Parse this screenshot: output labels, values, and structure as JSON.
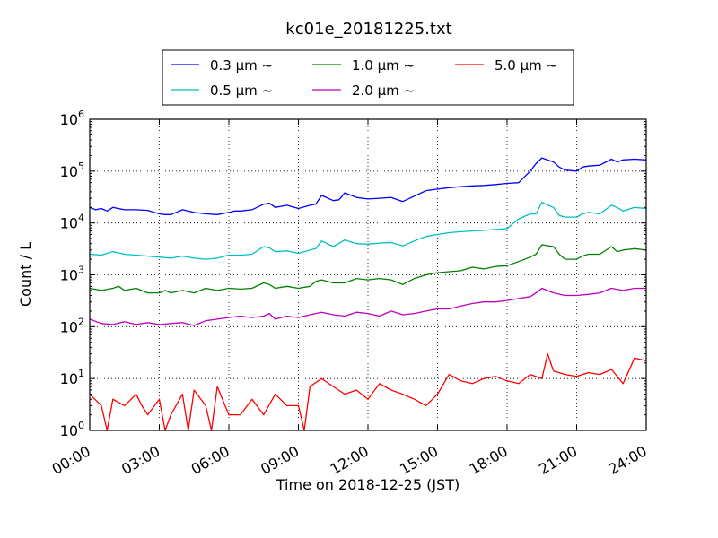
{
  "chart_data": {
    "type": "line",
    "title": "kc01e_20181225.txt",
    "xlabel": "Time on 2018-12-25 (JST)",
    "ylabel": "Count / L",
    "xlim": [
      0,
      24
    ],
    "ylim": [
      1,
      1000000
    ],
    "yscale": "log",
    "grid": true,
    "legend_placement": "top-center",
    "x_ticks": [
      {
        "value": 0,
        "label": "00:00"
      },
      {
        "value": 3,
        "label": "03:00"
      },
      {
        "value": 6,
        "label": "06:00"
      },
      {
        "value": 9,
        "label": "09:00"
      },
      {
        "value": 12,
        "label": "12:00"
      },
      {
        "value": 15,
        "label": "15:00"
      },
      {
        "value": 18,
        "label": "18:00"
      },
      {
        "value": 21,
        "label": "21:00"
      },
      {
        "value": 24,
        "label": "24:00"
      }
    ],
    "y_ticks": [
      {
        "value": 1,
        "base": "10",
        "exp": "0"
      },
      {
        "value": 10,
        "base": "10",
        "exp": "1"
      },
      {
        "value": 100,
        "base": "10",
        "exp": "2"
      },
      {
        "value": 1000,
        "base": "10",
        "exp": "3"
      },
      {
        "value": 10000,
        "base": "10",
        "exp": "4"
      },
      {
        "value": 100000,
        "base": "10",
        "exp": "5"
      },
      {
        "value": 1000000,
        "base": "10",
        "exp": "6"
      }
    ],
    "series": [
      {
        "name": "0.3 μm ~",
        "color": "#0000ff",
        "x": [
          0,
          0.25,
          0.5,
          0.75,
          1,
          1.5,
          2,
          2.5,
          3,
          3.25,
          3.5,
          4,
          4.5,
          5,
          5.5,
          6,
          6.25,
          6.5,
          7,
          7.5,
          7.75,
          8,
          8.5,
          9,
          9.5,
          9.75,
          10,
          10.5,
          10.75,
          11,
          11.5,
          12,
          12.5,
          13,
          13.5,
          14,
          14.5,
          15,
          15.5,
          16,
          16.5,
          17,
          17.5,
          18,
          18.5,
          19,
          19.25,
          19.5,
          20,
          20.25,
          20.5,
          21,
          21.25,
          21.5,
          22,
          22.5,
          22.75,
          23,
          23.5,
          24
        ],
        "y": [
          20000,
          18000,
          19000,
          17000,
          20000,
          18000,
          18000,
          17500,
          15000,
          14500,
          14500,
          18000,
          16000,
          15000,
          14500,
          16000,
          17000,
          17000,
          18000,
          23000,
          24000,
          20000,
          22000,
          19000,
          22000,
          23000,
          34000,
          27000,
          28000,
          38000,
          31000,
          29000,
          30000,
          31000,
          26000,
          33000,
          42000,
          45000,
          48000,
          50000,
          52000,
          53000,
          55000,
          58000,
          60000,
          100000,
          140000,
          180000,
          150000,
          120000,
          105000,
          100000,
          120000,
          125000,
          130000,
          170000,
          150000,
          165000,
          170000,
          165000
        ]
      },
      {
        "name": "0.5 μm ~",
        "color": "#00bfbf",
        "x": [
          0,
          0.5,
          1,
          1.5,
          2,
          2.5,
          3,
          3.5,
          4,
          4.5,
          5,
          5.5,
          6,
          6.5,
          7,
          7.5,
          7.75,
          8,
          8.5,
          9,
          9.5,
          9.75,
          10,
          10.5,
          11,
          11.5,
          12,
          12.5,
          13,
          13.5,
          14,
          14.5,
          15,
          15.5,
          16,
          16.5,
          17,
          17.5,
          18,
          18.5,
          19,
          19.25,
          19.5,
          20,
          20.25,
          20.5,
          21,
          21.25,
          21.5,
          22,
          22.5,
          22.75,
          23,
          23.5,
          24
        ],
        "y": [
          2500,
          2400,
          2800,
          2500,
          2400,
          2300,
          2200,
          2100,
          2300,
          2100,
          2000,
          2100,
          2400,
          2400,
          2500,
          3500,
          3300,
          2800,
          2900,
          2600,
          3000,
          3200,
          4500,
          3500,
          4700,
          4000,
          3900,
          4100,
          4200,
          3600,
          4500,
          5500,
          6000,
          6500,
          6800,
          7000,
          7200,
          7500,
          7800,
          12000,
          15000,
          15000,
          25000,
          20000,
          14000,
          13000,
          13000,
          15000,
          16000,
          15000,
          22000,
          20000,
          17000,
          20000,
          19000
        ]
      },
      {
        "name": "1.0 μm ~",
        "color": "#008000",
        "x": [
          0,
          0.5,
          1,
          1.25,
          1.5,
          2,
          2.5,
          3,
          3.25,
          3.5,
          4,
          4.5,
          5,
          5.5,
          6,
          6.5,
          7,
          7.5,
          7.75,
          8,
          8.5,
          9,
          9.5,
          9.75,
          10,
          10.5,
          11,
          11.5,
          12,
          12.5,
          13,
          13.5,
          14,
          14.5,
          15,
          15.5,
          16,
          16.5,
          17,
          17.5,
          18,
          18.5,
          19,
          19.25,
          19.5,
          20,
          20.25,
          20.5,
          21,
          21.25,
          21.5,
          22,
          22.5,
          22.75,
          23,
          23.5,
          24
        ],
        "y": [
          550,
          500,
          550,
          600,
          500,
          550,
          450,
          450,
          500,
          450,
          500,
          450,
          550,
          500,
          550,
          530,
          550,
          700,
          650,
          550,
          600,
          550,
          600,
          750,
          800,
          700,
          700,
          850,
          800,
          850,
          800,
          650,
          850,
          1000,
          1100,
          1150,
          1200,
          1400,
          1300,
          1450,
          1500,
          1800,
          2200,
          2500,
          3800,
          3500,
          2500,
          2000,
          2000,
          2300,
          2500,
          2500,
          3500,
          2800,
          3000,
          3200,
          3000
        ]
      },
      {
        "name": "2.0 μm ~",
        "color": "#bf00bf",
        "x": [
          0,
          0.5,
          1,
          1.5,
          2,
          2.5,
          3,
          3.5,
          4,
          4.5,
          5,
          5.5,
          6,
          6.5,
          7,
          7.5,
          7.75,
          8,
          8.5,
          9,
          9.5,
          10,
          10.5,
          11,
          11.5,
          12,
          12.5,
          13,
          13.5,
          14,
          14.5,
          15,
          15.5,
          16,
          16.5,
          17,
          17.5,
          18,
          18.5,
          19,
          19.25,
          19.5,
          20,
          20.5,
          21,
          21.5,
          22,
          22.5,
          23,
          23.5,
          24
        ],
        "y": [
          140,
          115,
          110,
          125,
          110,
          120,
          110,
          115,
          120,
          105,
          130,
          140,
          150,
          160,
          150,
          160,
          180,
          140,
          160,
          150,
          170,
          190,
          170,
          160,
          190,
          180,
          160,
          200,
          170,
          180,
          200,
          220,
          220,
          250,
          280,
          300,
          300,
          320,
          350,
          380,
          450,
          550,
          450,
          400,
          400,
          420,
          450,
          550,
          500,
          550,
          550
        ]
      },
      {
        "name": "5.0 μm ~",
        "color": "#ff0000",
        "x": [
          0,
          0.5,
          0.75,
          1,
          1.5,
          2,
          2.25,
          2.5,
          3,
          3.25,
          3.5,
          4,
          4.25,
          4.5,
          5,
          5.25,
          5.5,
          6,
          6.5,
          7,
          7.5,
          8,
          8.5,
          9,
          9.25,
          9.5,
          10,
          10.5,
          11,
          11.5,
          12,
          12.5,
          13,
          13.5,
          14,
          14.5,
          15,
          15.5,
          16,
          16.5,
          17,
          17.5,
          18,
          18.5,
          19,
          19.5,
          19.75,
          20,
          20.5,
          21,
          21.5,
          22,
          22.5,
          23,
          23.5,
          24
        ],
        "y": [
          5,
          3,
          1,
          4,
          3,
          5,
          3,
          2,
          4,
          1,
          2,
          5,
          1,
          6,
          3,
          1,
          7,
          2,
          2,
          4,
          2,
          5,
          3,
          3,
          1,
          7,
          10,
          7,
          5,
          6,
          4,
          8,
          6,
          5,
          4,
          3,
          5,
          12,
          9,
          8,
          10,
          11,
          9,
          8,
          12,
          10,
          30,
          14,
          12,
          11,
          13,
          12,
          15,
          8,
          25,
          22
        ]
      }
    ]
  }
}
